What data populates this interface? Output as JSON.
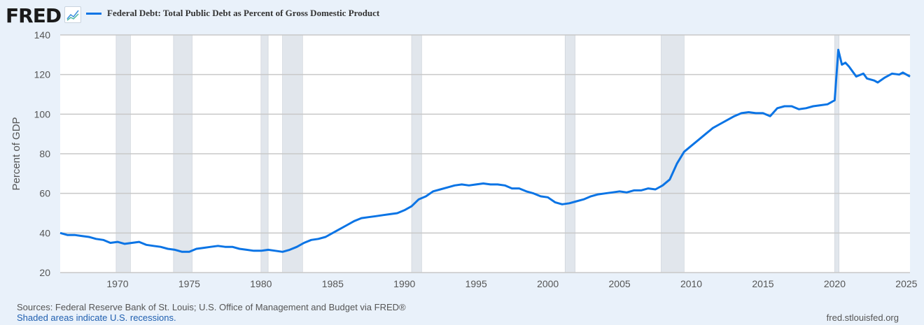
{
  "logo": "FRED",
  "chart_data": {
    "type": "line",
    "title": "Federal Debt: Total Public Debt as Percent of Gross Domestic Product",
    "ylabel": "Percent of GDP",
    "xlabel": "",
    "xlim": [
      1966,
      2025.25
    ],
    "ylim": [
      20,
      140
    ],
    "yticks": [
      20,
      40,
      60,
      80,
      100,
      120,
      140
    ],
    "xticks": [
      1970,
      1975,
      1980,
      1985,
      1990,
      1995,
      2000,
      2005,
      2010,
      2015,
      2020,
      2025
    ],
    "grid": true,
    "line_color": "#0b74e5",
    "recession_color": "#e1e6ec",
    "recessions": [
      [
        1969.9,
        1970.9
      ],
      [
        1973.9,
        1975.2
      ],
      [
        1980.0,
        1980.5
      ],
      [
        1981.5,
        1982.9
      ],
      [
        1990.5,
        1991.2
      ],
      [
        2001.2,
        2001.9
      ],
      [
        2007.9,
        2009.5
      ],
      [
        2020.0,
        2020.3
      ]
    ],
    "series": [
      {
        "name": "Federal Debt: Total Public Debt as Percent of Gross Domestic Product",
        "x": [
          1966,
          1966.5,
          1967,
          1967.5,
          1968,
          1968.5,
          1969,
          1969.5,
          1970,
          1970.5,
          1971,
          1971.5,
          1972,
          1972.5,
          1973,
          1973.5,
          1974,
          1974.5,
          1975,
          1975.5,
          1976,
          1976.5,
          1977,
          1977.5,
          1978,
          1978.5,
          1979,
          1979.5,
          1980,
          1980.5,
          1981,
          1981.5,
          1982,
          1982.5,
          1983,
          1983.5,
          1984,
          1984.5,
          1985,
          1985.5,
          1986,
          1986.5,
          1987,
          1987.5,
          1988,
          1988.5,
          1989,
          1989.5,
          1990,
          1990.5,
          1991,
          1991.5,
          1992,
          1992.5,
          1993,
          1993.5,
          1994,
          1994.5,
          1995,
          1995.5,
          1996,
          1996.5,
          1997,
          1997.5,
          1998,
          1998.5,
          1999,
          1999.5,
          2000,
          2000.5,
          2001,
          2001.5,
          2002,
          2002.5,
          2003,
          2003.5,
          2004,
          2004.5,
          2005,
          2005.5,
          2006,
          2006.5,
          2007,
          2007.5,
          2008,
          2008.5,
          2009,
          2009.5,
          2010,
          2010.5,
          2011,
          2011.5,
          2012,
          2012.5,
          2013,
          2013.5,
          2014,
          2014.5,
          2015,
          2015.5,
          2016,
          2016.5,
          2017,
          2017.5,
          2018,
          2018.5,
          2019,
          2019.5,
          2020,
          2020.25,
          2020.5,
          2020.75,
          2021,
          2021.5,
          2022,
          2022.25,
          2022.75,
          2023,
          2023.5,
          2024,
          2024.5,
          2024.75,
          2025,
          2025.25
        ],
        "values": [
          40,
          39,
          39,
          38.5,
          38,
          37,
          36.5,
          35,
          35.5,
          34.5,
          35,
          35.5,
          34,
          33.5,
          33,
          32,
          31.5,
          30.5,
          30.5,
          32,
          32.5,
          33,
          33.5,
          33,
          33,
          32,
          31.5,
          31,
          31,
          31.5,
          31,
          30.5,
          31.5,
          33,
          35,
          36.5,
          37,
          38,
          40,
          42,
          44,
          46,
          47.5,
          48,
          48.5,
          49,
          49.5,
          50,
          51.5,
          53.5,
          57,
          58.5,
          61,
          62,
          63,
          64,
          64.5,
          64,
          64.5,
          65,
          64.5,
          64.5,
          64,
          62.5,
          62.5,
          61,
          60,
          58.5,
          58,
          55.5,
          54.5,
          55,
          56,
          57,
          58.5,
          59.5,
          60,
          60.5,
          61,
          60.5,
          61.5,
          61.5,
          62.5,
          62,
          64,
          67,
          75,
          81,
          84,
          87,
          90,
          93,
          95,
          97,
          99,
          100.5,
          101,
          100.5,
          100.5,
          99,
          103,
          104,
          104,
          102.5,
          103,
          104,
          104.5,
          105,
          107,
          132.5,
          125,
          126,
          124,
          119,
          120.5,
          118,
          117,
          116,
          118.5,
          120.5,
          120,
          121,
          120,
          119
        ]
      }
    ]
  },
  "footer": {
    "sources": "Sources: Federal Reserve Bank of St. Louis; U.S. Office of Management and Budget via FRED®",
    "recession_note": "Shaded areas indicate U.S. recessions.",
    "site": "fred.stlouisfed.org"
  }
}
